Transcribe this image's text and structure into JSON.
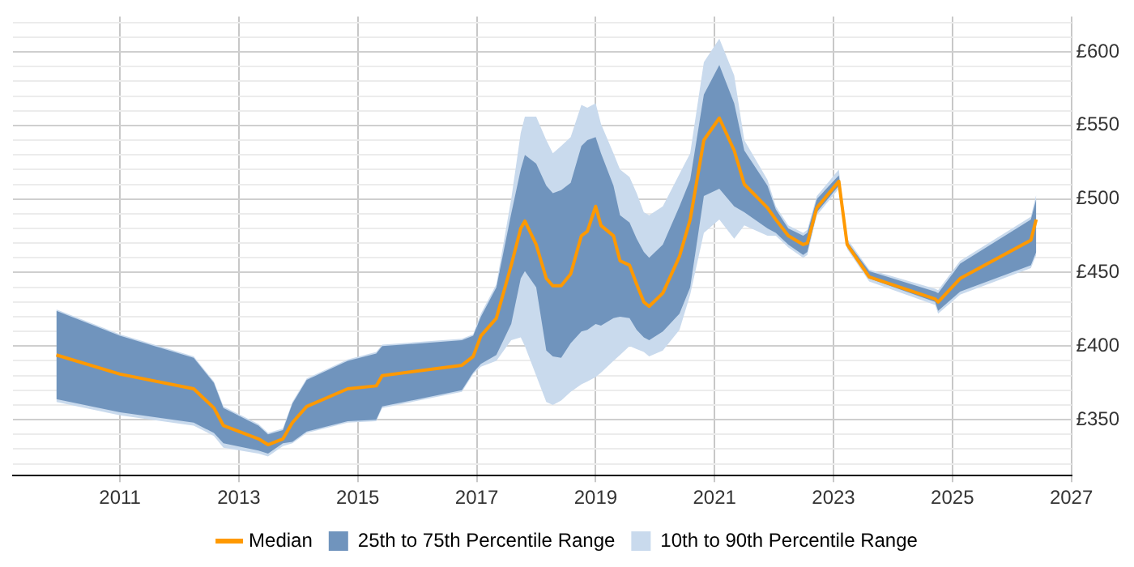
{
  "chart_data": {
    "type": "line",
    "x": [
      2009.93,
      2011.0,
      2012.24,
      2012.58,
      2012.74,
      2013.33,
      2013.49,
      2013.74,
      2013.9,
      2014.14,
      2014.83,
      2015.31,
      2015.41,
      2016.75,
      2016.94,
      2017.07,
      2017.33,
      2017.58,
      2017.74,
      2017.81,
      2018.0,
      2018.17,
      2018.28,
      2018.42,
      2018.58,
      2018.76,
      2018.86,
      2019.0,
      2019.09,
      2019.3,
      2019.41,
      2019.57,
      2019.69,
      2019.81,
      2019.9,
      2020.13,
      2020.41,
      2020.59,
      2020.82,
      2021.08,
      2021.33,
      2021.5,
      2021.89,
      2022.03,
      2022.24,
      2022.49,
      2022.56,
      2022.72,
      2023.09,
      2023.23,
      2023.6,
      2024.71,
      2024.76,
      2025.13,
      2026.32,
      2026.41
    ],
    "xlim": [
      2009.2,
      2027
    ],
    "xticks": [
      2011,
      2013,
      2015,
      2017,
      2019,
      2021,
      2023,
      2025,
      2027
    ],
    "ylim": [
      312,
      624
    ],
    "yticks": [
      {
        "value": 320,
        "label": null
      },
      {
        "value": 330,
        "label": null
      },
      {
        "value": 340,
        "label": null
      },
      {
        "value": 350,
        "label": "£350"
      },
      {
        "value": 360,
        "label": null
      },
      {
        "value": 370,
        "label": null
      },
      {
        "value": 380,
        "label": null
      },
      {
        "value": 390,
        "label": null
      },
      {
        "value": 400,
        "label": "£400"
      },
      {
        "value": 410,
        "label": null
      },
      {
        "value": 420,
        "label": null
      },
      {
        "value": 430,
        "label": null
      },
      {
        "value": 440,
        "label": null
      },
      {
        "value": 450,
        "label": "£450"
      },
      {
        "value": 460,
        "label": null
      },
      {
        "value": 470,
        "label": null
      },
      {
        "value": 480,
        "label": null
      },
      {
        "value": 490,
        "label": null
      },
      {
        "value": 500,
        "label": "£500"
      },
      {
        "value": 510,
        "label": null
      },
      {
        "value": 520,
        "label": null
      },
      {
        "value": 530,
        "label": null
      },
      {
        "value": 540,
        "label": null
      },
      {
        "value": 550,
        "label": "£550"
      },
      {
        "value": 560,
        "label": null
      },
      {
        "value": 570,
        "label": null
      },
      {
        "value": 580,
        "label": null
      },
      {
        "value": 590,
        "label": null
      },
      {
        "value": 600,
        "label": "£600"
      },
      {
        "value": 610,
        "label": null
      },
      {
        "value": 620,
        "label": null
      }
    ],
    "grid": true,
    "legend": "bottom",
    "marker": "none",
    "line_style": "solid",
    "series": [
      {
        "name": "Median",
        "type": "line",
        "color": "#ff9900",
        "values": [
          394,
          381,
          371,
          358,
          346,
          337,
          333,
          337,
          348,
          359,
          371,
          373,
          380,
          387,
          393,
          407,
          419,
          455,
          480,
          485,
          469,
          446,
          441,
          441,
          449,
          475,
          478,
          495,
          482,
          475,
          458,
          455,
          442,
          430,
          427,
          436,
          461,
          486,
          540,
          555,
          533,
          510,
          494,
          486,
          475,
          469,
          470,
          494,
          512,
          469,
          447,
          432,
          430,
          446,
          472,
          486
        ]
      },
      {
        "name": "25th to 75th Percentile Range",
        "type": "area",
        "color": "#7094bd",
        "values": [
          null,
          null,
          null,
          null,
          null,
          null,
          null,
          null,
          null,
          null,
          null,
          null,
          null,
          null,
          null,
          null,
          null,
          null,
          null,
          null,
          null,
          null,
          null,
          null,
          null,
          null,
          null,
          null,
          null,
          null,
          null,
          null,
          null,
          null,
          null,
          null,
          null,
          null,
          null,
          null,
          null,
          null,
          null,
          null,
          null,
          null,
          null,
          null,
          null,
          null,
          null,
          null,
          null,
          null,
          null,
          null
        ],
        "lower": [
          364,
          355,
          348,
          341,
          334,
          329,
          327,
          334,
          335,
          342,
          349,
          350,
          359,
          370,
          382,
          388,
          394,
          415,
          446,
          451,
          440,
          397,
          393,
          392,
          402,
          410,
          411,
          415,
          414,
          419,
          420,
          419,
          411,
          406,
          404,
          410,
          422,
          440,
          502,
          507,
          495,
          491,
          480,
          477,
          469,
          462,
          464,
          491,
          509,
          468,
          446,
          430,
          424,
          437,
          455,
          464
        ],
        "upper": [
          424,
          407,
          392,
          375,
          358,
          346,
          340,
          343,
          361,
          377,
          390,
          395,
          400,
          404,
          407,
          420,
          440,
          490,
          520,
          530,
          524,
          509,
          504,
          506,
          511,
          536,
          540,
          542,
          531,
          509,
          489,
          484,
          473,
          464,
          460,
          469,
          495,
          513,
          571,
          591,
          565,
          533,
          509,
          493,
          480,
          475,
          477,
          500,
          516,
          471,
          451,
          437,
          436,
          456,
          486,
          500
        ]
      },
      {
        "name": "10th to 90th Percentile Range",
        "type": "area",
        "color": "#c9daed",
        "values": [
          null,
          null,
          null,
          null,
          null,
          null,
          null,
          null,
          null,
          null,
          null,
          null,
          null,
          null,
          null,
          null,
          null,
          null,
          null,
          null,
          null,
          null,
          null,
          null,
          null,
          null,
          null,
          null,
          null,
          null,
          null,
          null,
          null,
          null,
          null,
          null,
          null,
          null,
          null,
          null,
          null,
          null,
          null,
          null,
          null,
          null,
          null,
          null,
          null,
          null,
          null,
          null,
          null,
          null,
          null,
          null
        ],
        "lower": [
          362,
          353,
          346,
          339,
          331,
          327,
          325,
          332,
          334,
          341,
          348,
          349,
          358,
          369,
          381,
          386,
          390,
          404,
          406,
          400,
          380,
          362,
          360,
          363,
          369,
          374,
          376,
          379,
          382,
          390,
          394,
          400,
          398,
          396,
          393,
          397,
          411,
          435,
          477,
          486,
          473,
          482,
          475,
          475,
          467,
          460,
          462,
          489,
          507,
          466,
          444,
          428,
          422,
          435,
          453,
          462
        ],
        "upper": [
          425,
          408,
          393,
          376,
          359,
          347,
          341,
          344,
          362,
          378,
          391,
          396,
          401,
          405,
          408,
          422,
          442,
          500,
          545,
          556,
          556,
          540,
          531,
          536,
          542,
          564,
          562,
          565,
          551,
          531,
          520,
          515,
          504,
          491,
          489,
          495,
          517,
          531,
          593,
          609,
          584,
          540,
          513,
          495,
          482,
          477,
          479,
          502,
          520,
          473,
          452,
          439,
          438,
          458,
          488,
          503
        ]
      }
    ]
  }
}
